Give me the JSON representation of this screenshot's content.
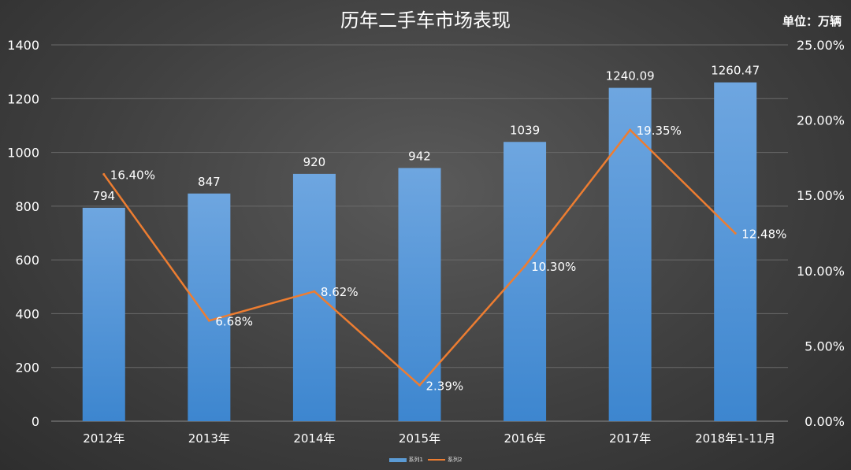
{
  "chart_data": {
    "type": "bar",
    "title": "历年二手车市场表现",
    "unit_label": "单位：万辆",
    "categories": [
      "2012年",
      "2013年",
      "2014年",
      "2015年",
      "2016年",
      "2017年",
      "2018年1-11月"
    ],
    "series": [
      {
        "name": "系列1",
        "type": "bar",
        "axis": "left",
        "values": [
          794,
          847,
          920,
          942,
          1039,
          1240.09,
          1260.47
        ],
        "labels": [
          "794",
          "847",
          "920",
          "942",
          "1039",
          "1240.09",
          "1260.47"
        ],
        "color": "#5b9bd5"
      },
      {
        "name": "系列2",
        "type": "line",
        "axis": "right",
        "values": [
          16.4,
          6.68,
          8.62,
          2.39,
          10.3,
          19.35,
          12.48
        ],
        "labels": [
          "16.40%",
          "6.68%",
          "8.62%",
          "2.39%",
          "10.30%",
          "19.35%",
          "12.48%"
        ],
        "color": "#ed7d31"
      }
    ],
    "y_left": {
      "ylim": [
        0,
        1400
      ],
      "ticks": [
        0,
        200,
        400,
        600,
        800,
        1000,
        1200,
        1400
      ],
      "tick_labels": [
        "0",
        "200",
        "400",
        "600",
        "800",
        "1000",
        "1200",
        "1400"
      ]
    },
    "y_right": {
      "ylim": [
        0,
        25
      ],
      "ticks": [
        0,
        5,
        10,
        15,
        20,
        25
      ],
      "tick_labels": [
        "0.00%",
        "5.00%",
        "10.00%",
        "15.00%",
        "20.00%",
        "25.00%"
      ]
    },
    "grid": true,
    "legend_position": "bottom"
  }
}
